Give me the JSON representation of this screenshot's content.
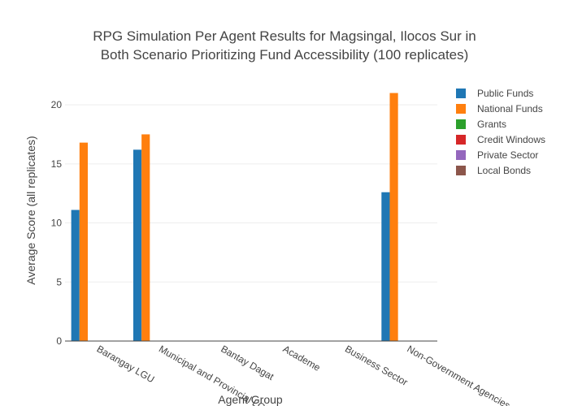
{
  "chart_data": {
    "type": "bar",
    "title_lines": [
      "RPG Simulation Per Agent Results for Magsingal, Ilocos Sur in",
      "Both Scenario Prioritizing Fund Accessibility (100 replicates)"
    ],
    "xlabel": "Agent Group",
    "ylabel": "Average Score (all replicates)",
    "categories": [
      "Barangay LGU",
      "Municipal and Provincial LGU",
      "Bantay Dagat",
      "Academe",
      "Business Sector",
      "Non-Government Agencies"
    ],
    "ylim": [
      0,
      22
    ],
    "yticks": [
      0,
      5,
      10,
      15,
      20
    ],
    "grid": true,
    "legend_position": "right",
    "series": [
      {
        "name": "Public Funds",
        "color": "#1f77b4",
        "values": [
          11.1,
          16.2,
          0,
          0,
          0,
          12.6
        ]
      },
      {
        "name": "National Funds",
        "color": "#ff7f0e",
        "values": [
          16.8,
          17.5,
          0,
          0,
          0,
          21.0
        ]
      },
      {
        "name": "Grants",
        "color": "#2ca02c",
        "values": [
          0,
          0,
          0,
          0,
          0,
          0
        ]
      },
      {
        "name": "Credit Windows",
        "color": "#d62728",
        "values": [
          0,
          0,
          0,
          0,
          0,
          0
        ]
      },
      {
        "name": "Private Sector",
        "color": "#9467bd",
        "values": [
          0,
          0,
          0,
          0,
          0,
          0
        ]
      },
      {
        "name": "Local Bonds",
        "color": "#8c564b",
        "values": [
          0,
          0,
          0,
          0,
          0,
          0
        ]
      }
    ]
  }
}
